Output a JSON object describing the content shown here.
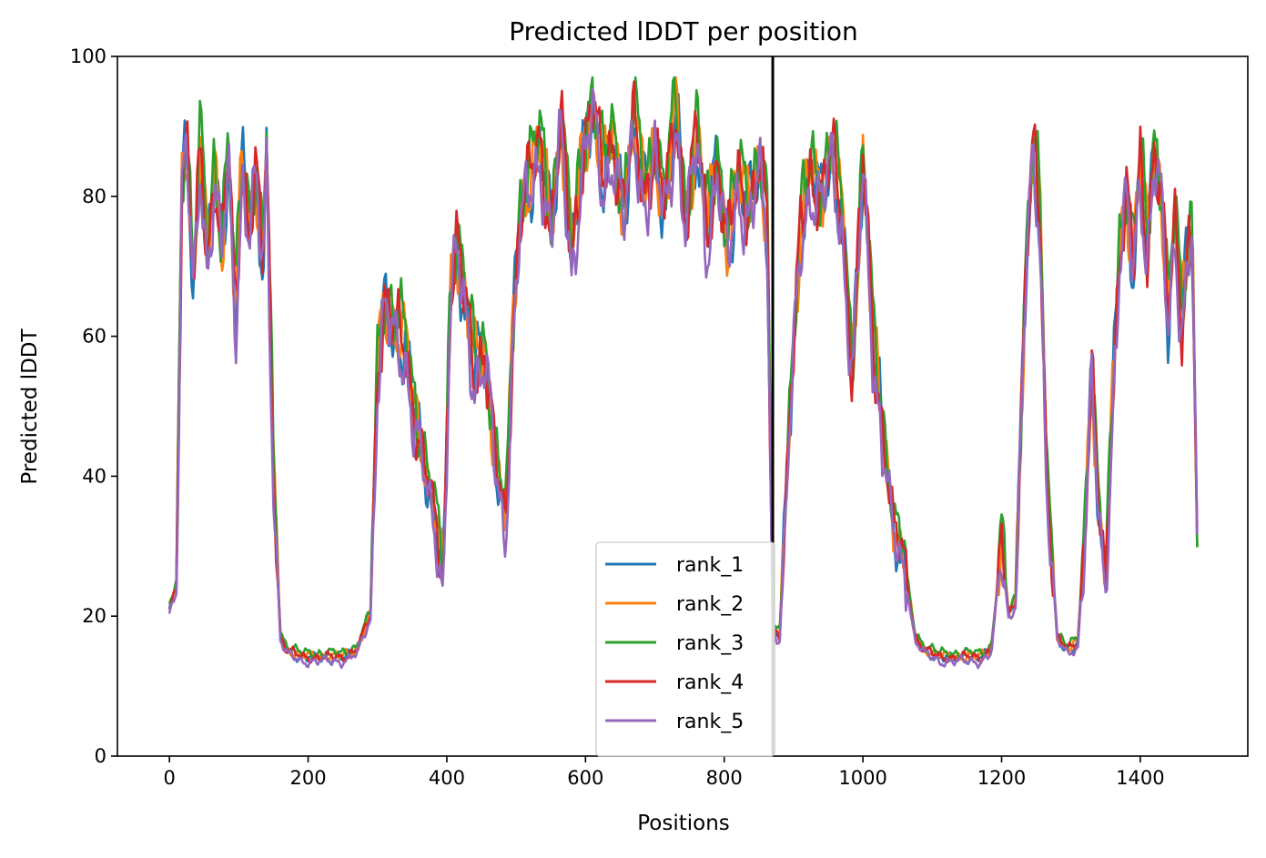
{
  "chart_data": {
    "type": "line",
    "title": "Predicted lDDT per position",
    "xlabel": "Positions",
    "ylabel": "Predicted lDDT",
    "xlim": [
      -75,
      1555
    ],
    "ylim": [
      0,
      100
    ],
    "xticks": [
      0,
      200,
      400,
      600,
      800,
      1000,
      1200,
      1400
    ],
    "yticks": [
      0,
      20,
      40,
      60,
      80,
      100
    ],
    "grid": false,
    "legend_position": "lower center",
    "vline_x": 870,
    "vline_color": "#000000",
    "series": [
      {
        "name": "rank_1",
        "color": "#1f77b4"
      },
      {
        "name": "rank_2",
        "color": "#ff7f0e"
      },
      {
        "name": "rank_3",
        "color": "#2ca02c"
      },
      {
        "name": "rank_4",
        "color": "#d62728"
      },
      {
        "name": "rank_5",
        "color": "#9467bd"
      }
    ],
    "profile": {
      "x": [
        0,
        10,
        18,
        25,
        35,
        45,
        55,
        65,
        75,
        85,
        95,
        105,
        115,
        125,
        135,
        140,
        150,
        160,
        170,
        190,
        210,
        230,
        250,
        270,
        290,
        300,
        310,
        325,
        340,
        355,
        370,
        385,
        395,
        405,
        415,
        425,
        440,
        455,
        470,
        485,
        495,
        505,
        520,
        535,
        550,
        565,
        580,
        595,
        610,
        625,
        640,
        655,
        670,
        685,
        700,
        715,
        730,
        745,
        760,
        775,
        790,
        805,
        820,
        835,
        850,
        862,
        870,
        880,
        895,
        910,
        925,
        940,
        955,
        970,
        985,
        1000,
        1015,
        1030,
        1045,
        1060,
        1075,
        1090,
        1110,
        1130,
        1150,
        1170,
        1185,
        1200,
        1210,
        1220,
        1235,
        1245,
        1255,
        1265,
        1280,
        1295,
        1310,
        1320,
        1330,
        1340,
        1350,
        1360,
        1370,
        1380,
        1390,
        1400,
        1410,
        1420,
        1430,
        1440,
        1450,
        1460,
        1470,
        1475,
        1482
      ],
      "y": [
        21,
        24,
        82,
        88,
        66,
        87,
        70,
        84,
        72,
        86,
        62,
        84,
        76,
        83,
        70,
        86,
        40,
        17,
        15,
        14,
        14,
        14,
        14,
        15,
        20,
        55,
        65,
        60,
        58,
        48,
        40,
        32,
        25,
        66,
        73,
        65,
        55,
        58,
        42,
        32,
        60,
        77,
        82,
        87,
        75,
        90,
        70,
        85,
        93,
        82,
        88,
        77,
        90,
        80,
        86,
        78,
        92,
        76,
        89,
        74,
        85,
        72,
        82,
        78,
        84,
        76,
        18,
        17,
        50,
        74,
        83,
        80,
        86,
        76,
        55,
        85,
        58,
        45,
        32,
        27,
        17,
        15,
        14,
        14,
        14,
        14,
        15,
        30,
        20,
        22,
        70,
        86,
        77,
        40,
        17,
        15,
        16,
        32,
        55,
        35,
        24,
        50,
        72,
        80,
        70,
        84,
        72,
        87,
        80,
        62,
        76,
        62,
        74,
        75,
        30
      ]
    },
    "series_offsets": [
      0,
      1,
      2.5,
      0.5,
      -1.5
    ]
  }
}
